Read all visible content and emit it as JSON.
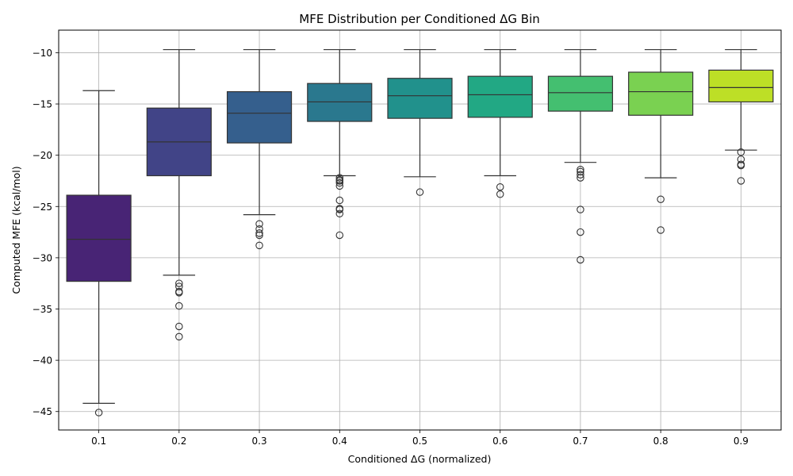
{
  "chart_data": {
    "type": "box",
    "title": "MFE Distribution per Conditioned ΔG Bin",
    "xlabel": "Conditioned ΔG (normalized)",
    "ylabel": "Computed MFE (kcal/mol)",
    "ylim": [
      -46.8,
      -7.8
    ],
    "yticks": [
      -10,
      -15,
      -20,
      -25,
      -30,
      -35,
      -40,
      -45
    ],
    "ytick_labels": [
      "−10",
      "−15",
      "−20",
      "−25",
      "−30",
      "−35",
      "−40",
      "−45"
    ],
    "grid": true,
    "categories": [
      "0.1",
      "0.2",
      "0.3",
      "0.4",
      "0.5",
      "0.6",
      "0.7",
      "0.8",
      "0.9"
    ],
    "boxes": [
      {
        "category": "0.1",
        "color": "#482475",
        "whisker_high": -13.7,
        "q3": -23.9,
        "median": -28.2,
        "q1": -32.3,
        "whisker_low": -44.2,
        "outliers": [
          -45.1
        ]
      },
      {
        "category": "0.2",
        "color": "#414487",
        "whisker_high": -9.7,
        "q3": -15.4,
        "median": -18.7,
        "q1": -22.0,
        "whisker_low": -31.7,
        "outliers": [
          -32.5,
          -32.8,
          -33.3,
          -33.4,
          -34.7,
          -36.7,
          -37.7
        ]
      },
      {
        "category": "0.3",
        "color": "#355f8d",
        "whisker_high": -9.7,
        "q3": -13.8,
        "median": -15.9,
        "q1": -18.8,
        "whisker_low": -25.8,
        "outliers": [
          -26.7,
          -27.2,
          -27.6,
          -27.8,
          -28.8
        ]
      },
      {
        "category": "0.4",
        "color": "#2a788e",
        "whisker_high": -9.7,
        "q3": -13.0,
        "median": -14.8,
        "q1": -16.7,
        "whisker_low": -22.0,
        "outliers": [
          -22.2,
          -22.4,
          -22.5,
          -22.7,
          -23.0,
          -24.4,
          -25.2,
          -25.3,
          -25.7,
          -27.8
        ]
      },
      {
        "category": "0.5",
        "color": "#21918c",
        "whisker_high": -9.7,
        "q3": -12.5,
        "median": -14.2,
        "q1": -16.4,
        "whisker_low": -22.1,
        "outliers": [
          -23.6
        ]
      },
      {
        "category": "0.6",
        "color": "#22a884",
        "whisker_high": -9.7,
        "q3": -12.3,
        "median": -14.1,
        "q1": -16.3,
        "whisker_low": -22.0,
        "outliers": [
          -23.1,
          -23.8
        ]
      },
      {
        "category": "0.7",
        "color": "#44bf70",
        "whisker_high": -9.7,
        "q3": -12.3,
        "median": -13.9,
        "q1": -15.7,
        "whisker_low": -20.7,
        "outliers": [
          -21.4,
          -21.6,
          -21.9,
          -22.2,
          -25.3,
          -27.5,
          -30.2
        ]
      },
      {
        "category": "0.8",
        "color": "#7ad151",
        "whisker_high": -9.7,
        "q3": -11.9,
        "median": -13.8,
        "q1": -16.1,
        "whisker_low": -22.2,
        "outliers": [
          -24.3,
          -27.3
        ]
      },
      {
        "category": "0.9",
        "color": "#bddf26",
        "whisker_high": -9.7,
        "q3": -11.7,
        "median": -13.4,
        "q1": -14.8,
        "whisker_low": -19.5,
        "outliers": [
          -19.7,
          -20.4,
          -20.9,
          -21.0,
          -22.5
        ]
      }
    ]
  }
}
